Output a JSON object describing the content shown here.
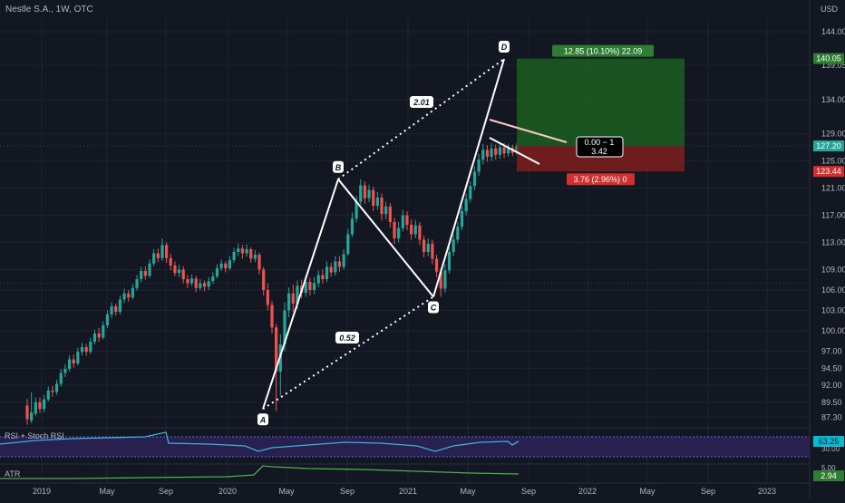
{
  "header": {
    "title": "Nestle S.A., 1W, OTC",
    "currency": "USD"
  },
  "panels": {
    "rsi_label": "RSI + Stoch RSI",
    "atr_label": "ATR"
  },
  "colors": {
    "background": "#131722",
    "up_candle": "#26a69a",
    "down_candle": "#ef5350",
    "profit_zone": "#1b5e20",
    "loss_zone": "#7f1d1d",
    "pattern_line": "#ffffff",
    "rsi_line": "#3fb0d6",
    "atr_line": "#4caf50"
  },
  "chart_data": {
    "type": "candlestick",
    "title": "Nestle S.A., 1W, OTC",
    "y_axis_unit": "USD",
    "ylim": [
      86,
      146
    ],
    "y_ticks": [
      144.0,
      139.05,
      134.0,
      129.0,
      125.0,
      121.0,
      117.0,
      113.0,
      109.0,
      106.0,
      103.0,
      100.0,
      97.0,
      94.5,
      92.0,
      89.5,
      87.3
    ],
    "x_ticks": [
      "2019",
      "May",
      "Sep",
      "2020",
      "May",
      "Sep",
      "2021",
      "May",
      "Sep",
      "2022",
      "May",
      "Sep",
      "2023"
    ],
    "price_badges": [
      {
        "value": "140.05",
        "color": "#2e7d32"
      },
      {
        "value": "127.20",
        "color": "#26a69a"
      },
      {
        "value": "123.44",
        "color": "#d32f2f"
      }
    ],
    "current_price": 127.2,
    "harmonic_points": [
      {
        "label": "A",
        "time": "2020-03",
        "price": 88.5
      },
      {
        "label": "B",
        "time": "2020-08",
        "price": 122.3
      },
      {
        "label": "C",
        "time": "2021-03",
        "price": 105.0
      },
      {
        "label": "D",
        "time": "2021-07",
        "price": 140.0
      }
    ],
    "ratios": [
      {
        "label": "2.01",
        "between": "B-D"
      },
      {
        "label": "0.52",
        "between": "A-C"
      }
    ],
    "position": {
      "entry": 127.2,
      "target": 140.05,
      "stop": 123.44,
      "target_label": "12.85 (10.10%) 22.09",
      "stop_label": "3.76 (2.96%) 0",
      "ratio_label_line1": "0.00 ~ 1",
      "ratio_label_line2": "3.42"
    },
    "rsi": {
      "value": "63.25",
      "lower_tick": "30.00",
      "color": "#3fb0d6"
    },
    "atr": {
      "value": "2.94",
      "tick": "5.00",
      "color": "#4caf50"
    },
    "candles": [
      [
        89.0,
        87.0,
        86.2,
        90.0
      ],
      [
        86.8,
        88.0,
        86.4,
        91.0
      ],
      [
        87.8,
        89.5,
        87.5,
        90.2
      ],
      [
        89.5,
        88.5,
        87.9,
        90.2
      ],
      [
        88.5,
        89.9,
        88.0,
        90.6
      ],
      [
        89.9,
        91.2,
        89.6,
        91.8
      ],
      [
        91.2,
        91.0,
        90.3,
        91.9
      ],
      [
        91.0,
        92.2,
        90.6,
        92.8
      ],
      [
        92.2,
        93.8,
        91.8,
        94.4
      ],
      [
        93.8,
        94.4,
        93.2,
        95.1
      ],
      [
        94.4,
        95.8,
        94.0,
        96.4
      ],
      [
        95.8,
        95.2,
        94.6,
        96.5
      ],
      [
        95.2,
        96.9,
        94.9,
        97.5
      ],
      [
        96.9,
        97.6,
        96.4,
        98.2
      ],
      [
        97.6,
        96.9,
        96.3,
        98.1
      ],
      [
        96.9,
        98.4,
        96.6,
        99.0
      ],
      [
        98.4,
        99.6,
        98.0,
        100.2
      ],
      [
        99.6,
        99.0,
        98.4,
        100.4
      ],
      [
        99.0,
        100.8,
        98.7,
        101.4
      ],
      [
        100.8,
        102.4,
        100.4,
        103.0
      ],
      [
        102.4,
        103.6,
        101.9,
        104.2
      ],
      [
        103.6,
        102.8,
        102.2,
        104.0
      ],
      [
        102.8,
        104.6,
        102.4,
        105.2
      ],
      [
        104.6,
        105.5,
        104.1,
        106.2
      ],
      [
        105.5,
        104.9,
        104.3,
        106.0
      ],
      [
        104.9,
        106.3,
        104.6,
        106.9
      ],
      [
        106.3,
        107.6,
        105.9,
        108.2
      ],
      [
        107.6,
        108.8,
        107.1,
        109.4
      ],
      [
        108.8,
        108.1,
        107.5,
        109.5
      ],
      [
        108.1,
        109.9,
        107.8,
        110.5
      ],
      [
        109.9,
        111.4,
        109.5,
        112.0
      ],
      [
        111.4,
        110.7,
        110.1,
        112.1
      ],
      [
        110.7,
        112.6,
        110.3,
        113.6
      ],
      [
        112.6,
        110.7,
        110.0,
        113.0
      ],
      [
        110.7,
        109.6,
        108.9,
        111.3
      ],
      [
        109.6,
        108.5,
        108.0,
        110.2
      ],
      [
        108.5,
        109.0,
        107.9,
        109.7
      ],
      [
        109.0,
        107.6,
        107.0,
        109.5
      ],
      [
        107.6,
        107.0,
        106.3,
        108.2
      ],
      [
        107.0,
        107.7,
        106.6,
        108.3
      ],
      [
        107.7,
        106.3,
        105.7,
        108.1
      ],
      [
        106.3,
        107.0,
        105.9,
        107.6
      ],
      [
        107.0,
        106.5,
        105.8,
        107.4
      ],
      [
        106.5,
        107.3,
        106.0,
        107.9
      ],
      [
        107.3,
        108.0,
        106.9,
        108.6
      ],
      [
        108.0,
        109.2,
        107.7,
        109.8
      ],
      [
        109.2,
        109.9,
        108.8,
        110.5
      ],
      [
        109.9,
        109.2,
        108.6,
        110.2
      ],
      [
        109.2,
        110.4,
        108.9,
        111.0
      ],
      [
        110.4,
        111.6,
        110.0,
        112.2
      ],
      [
        111.6,
        112.1,
        111.0,
        112.8
      ],
      [
        112.1,
        111.4,
        110.6,
        112.6
      ],
      [
        111.4,
        112.0,
        110.9,
        112.7
      ],
      [
        112.0,
        110.6,
        110.0,
        112.3
      ],
      [
        110.6,
        111.2,
        110.1,
        111.9
      ],
      [
        111.2,
        109.0,
        108.3,
        111.5
      ],
      [
        109.0,
        106.0,
        105.2,
        109.4
      ],
      [
        106.0,
        103.8,
        103.0,
        107.0
      ],
      [
        103.8,
        100.5,
        99.6,
        104.4
      ],
      [
        100.5,
        94.0,
        88.2,
        101.0
      ],
      [
        94.0,
        98.0,
        90.5,
        99.5
      ],
      [
        98.0,
        103.0,
        97.0,
        104.2
      ],
      [
        103.0,
        105.5,
        102.0,
        106.4
      ],
      [
        105.5,
        104.0,
        102.8,
        106.8
      ],
      [
        104.0,
        106.6,
        103.2,
        107.4
      ],
      [
        106.6,
        105.6,
        104.8,
        107.5
      ],
      [
        105.6,
        107.2,
        105.0,
        108.0
      ],
      [
        107.2,
        106.0,
        105.2,
        107.8
      ],
      [
        106.0,
        107.0,
        105.4,
        107.9
      ],
      [
        107.0,
        108.2,
        106.4,
        108.9
      ],
      [
        108.2,
        107.6,
        107.0,
        109.0
      ],
      [
        107.6,
        109.4,
        107.2,
        110.2
      ],
      [
        109.4,
        108.6,
        108.0,
        110.0
      ],
      [
        108.6,
        110.2,
        108.1,
        111.0
      ],
      [
        110.2,
        109.4,
        108.7,
        111.0
      ],
      [
        109.4,
        111.3,
        109.0,
        112.0
      ],
      [
        111.3,
        114.2,
        111.0,
        115.0
      ],
      [
        114.2,
        116.5,
        113.8,
        117.4
      ],
      [
        116.5,
        119.0,
        116.0,
        119.8
      ],
      [
        119.0,
        121.4,
        118.6,
        122.3
      ],
      [
        121.4,
        119.5,
        118.7,
        122.0
      ],
      [
        119.5,
        120.7,
        118.9,
        121.5
      ],
      [
        120.7,
        118.4,
        117.6,
        121.2
      ],
      [
        118.4,
        119.6,
        117.8,
        120.4
      ],
      [
        119.6,
        117.2,
        116.2,
        120.2
      ],
      [
        117.2,
        118.3,
        116.4,
        119.0
      ],
      [
        118.3,
        116.0,
        115.2,
        118.8
      ],
      [
        116.0,
        113.6,
        112.8,
        116.6
      ],
      [
        113.6,
        115.1,
        113.0,
        116.0
      ],
      [
        115.1,
        117.0,
        114.6,
        117.8
      ],
      [
        117.0,
        115.6,
        114.8,
        117.6
      ],
      [
        115.6,
        114.2,
        113.4,
        116.4
      ],
      [
        114.2,
        115.5,
        113.6,
        116.3
      ],
      [
        115.5,
        113.4,
        112.6,
        116.0
      ],
      [
        113.4,
        111.6,
        110.8,
        114.0
      ],
      [
        111.6,
        112.8,
        111.0,
        113.6
      ],
      [
        112.8,
        110.6,
        109.8,
        113.4
      ],
      [
        110.6,
        108.7,
        107.9,
        111.2
      ],
      [
        108.7,
        106.2,
        105.0,
        109.2
      ],
      [
        106.2,
        108.9,
        105.6,
        109.8
      ],
      [
        108.9,
        111.6,
        108.4,
        112.4
      ],
      [
        111.6,
        113.4,
        111.0,
        114.2
      ],
      [
        113.4,
        115.3,
        112.9,
        116.0
      ],
      [
        115.3,
        117.6,
        114.8,
        118.4
      ],
      [
        117.6,
        119.4,
        117.0,
        120.2
      ],
      [
        119.4,
        121.3,
        118.9,
        122.0
      ],
      [
        121.3,
        123.4,
        120.7,
        124.2
      ],
      [
        123.4,
        125.2,
        122.8,
        126.0
      ],
      [
        125.2,
        126.6,
        124.5,
        127.5
      ],
      [
        126.6,
        125.6,
        124.9,
        127.3
      ],
      [
        125.6,
        126.8,
        125.0,
        127.6
      ],
      [
        126.8,
        125.9,
        125.2,
        127.4
      ],
      [
        125.9,
        127.0,
        125.3,
        127.7
      ],
      [
        127.0,
        126.1,
        125.4,
        127.6
      ],
      [
        126.1,
        126.9,
        125.6,
        127.5
      ],
      [
        126.9,
        126.2,
        125.7,
        127.4
      ],
      [
        126.2,
        127.2,
        125.9,
        127.6
      ]
    ]
  }
}
